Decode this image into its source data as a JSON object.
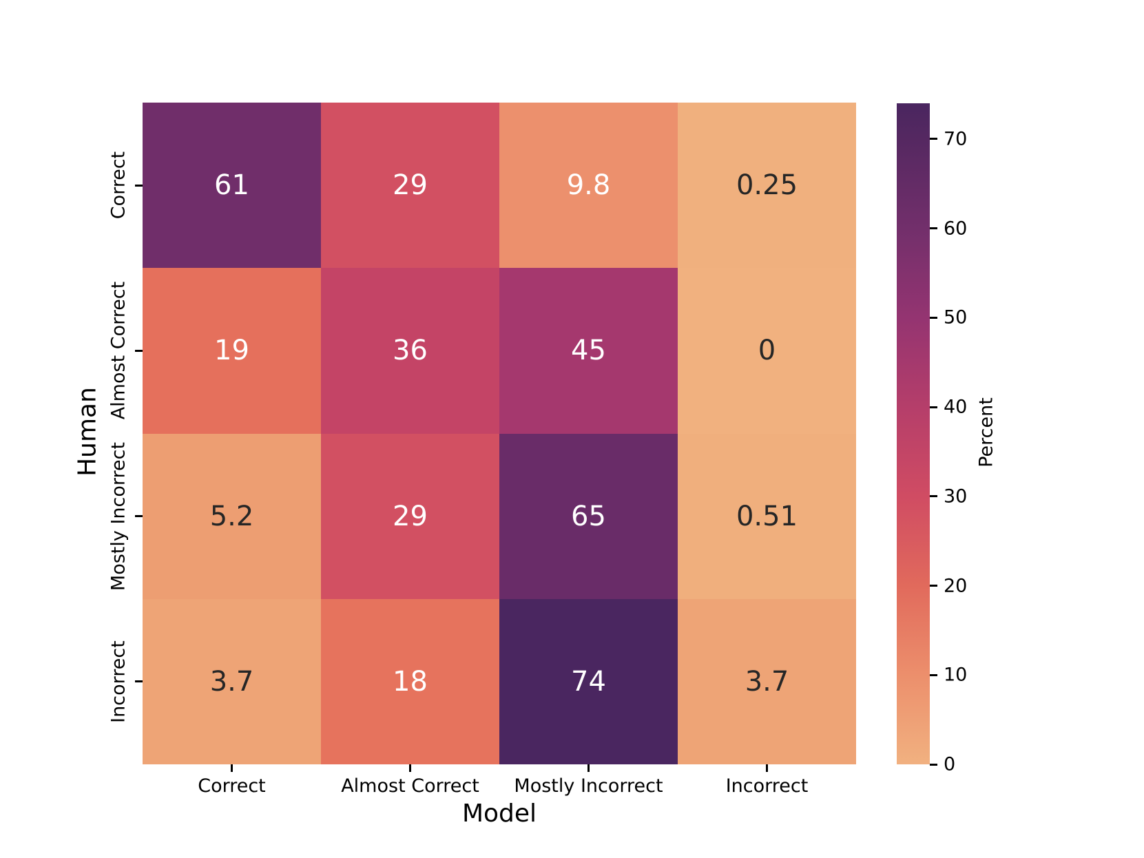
{
  "chart_data": {
    "type": "heatmap",
    "title": "",
    "xlabel": "Model",
    "ylabel": "Human",
    "x_categories": [
      "Correct",
      "Almost Correct",
      "Mostly Incorrect",
      "Incorrect"
    ],
    "y_categories": [
      "Correct",
      "Almost Correct",
      "Mostly Incorrect",
      "Incorrect"
    ],
    "values": [
      [
        61,
        29,
        9.8,
        0.25
      ],
      [
        19,
        36,
        45,
        0
      ],
      [
        5.2,
        29,
        65,
        0.51
      ],
      [
        3.7,
        18,
        74,
        3.7
      ]
    ],
    "cell_labels": [
      [
        "61",
        "29",
        "9.8",
        "0.25"
      ],
      [
        "19",
        "36",
        "45",
        "0"
      ],
      [
        "5.2",
        "29",
        "65",
        "0.51"
      ],
      [
        "3.7",
        "18",
        "74",
        "3.7"
      ]
    ],
    "cell_colors": [
      [
        "#702e6a",
        "#d25062",
        "#ec906d",
        "#f0b07e"
      ],
      [
        "#e5705c",
        "#c44466",
        "#a5386e",
        "#f1b17f"
      ],
      [
        "#ed9e72",
        "#d25062",
        "#692c68",
        "#f0af7d"
      ],
      [
        "#eea476",
        "#e6735d",
        "#4a2660",
        "#eea476"
      ]
    ],
    "cell_text_colors": [
      [
        "#ffffff",
        "#ffffff",
        "#ffffff",
        "#262626"
      ],
      [
        "#ffffff",
        "#ffffff",
        "#ffffff",
        "#262626"
      ],
      [
        "#262626",
        "#ffffff",
        "#ffffff",
        "#262626"
      ],
      [
        "#262626",
        "#ffffff",
        "#ffffff",
        "#262626"
      ]
    ],
    "grid": false,
    "legend_position": "right-colorbar",
    "colorbar": {
      "label": "Percent",
      "vmin": 0,
      "vmax": 74,
      "ticks": [
        0,
        10,
        20,
        30,
        40,
        50,
        60,
        70
      ],
      "gradient_stops": [
        {
          "value": 0,
          "color": "#f1b180"
        },
        {
          "value": 10,
          "color": "#ec8f6c"
        },
        {
          "value": 20,
          "color": "#e16a5c"
        },
        {
          "value": 30,
          "color": "#d04c63"
        },
        {
          "value": 40,
          "color": "#b53e6a"
        },
        {
          "value": 50,
          "color": "#943471"
        },
        {
          "value": 60,
          "color": "#722f6b"
        },
        {
          "value": 70,
          "color": "#552861"
        },
        {
          "value": 74,
          "color": "#4a2660"
        }
      ]
    }
  },
  "colors": {
    "background": "#ffffff",
    "axis_text": "#000000",
    "tick_mark": "#000000"
  }
}
